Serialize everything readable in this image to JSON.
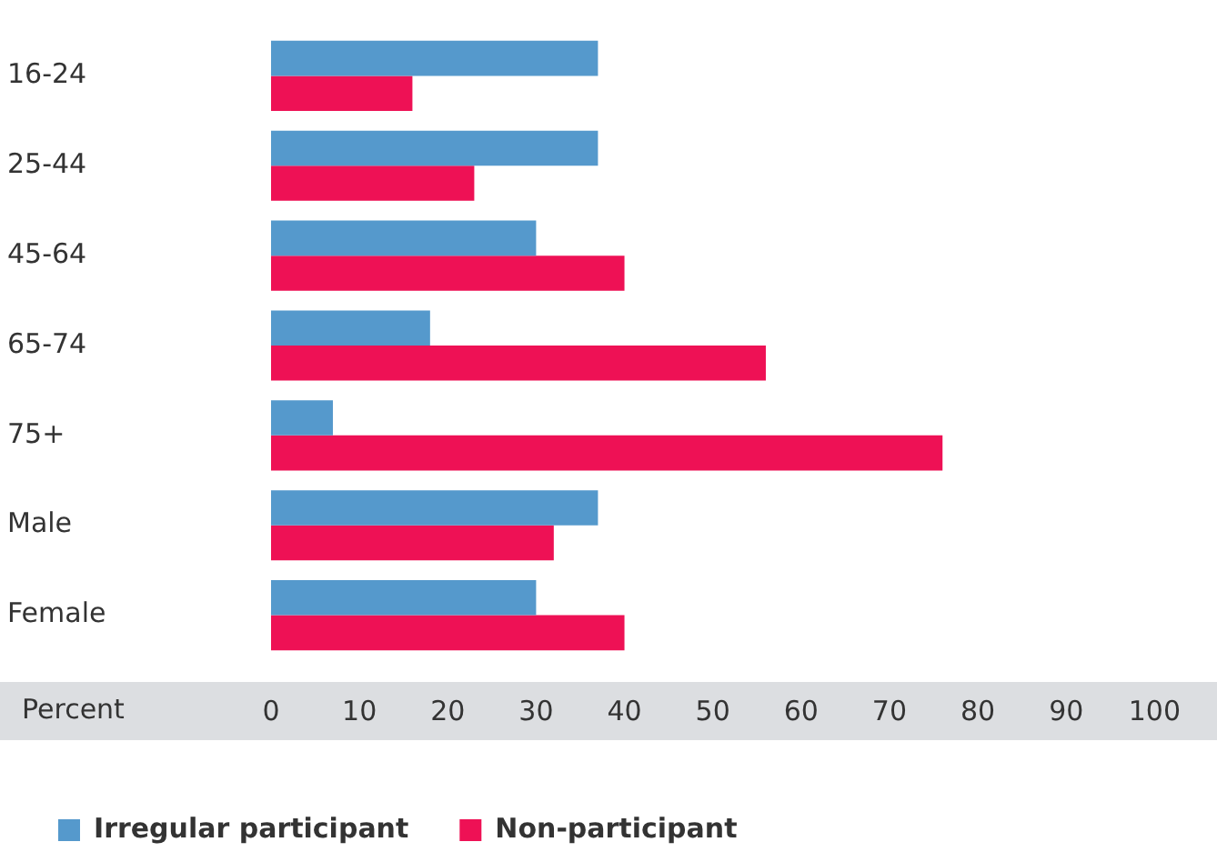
{
  "chart_data": {
    "type": "bar",
    "orientation": "horizontal",
    "xlabel": "Percent",
    "categories": [
      "16-24",
      "25-44",
      "45-64",
      "65-74",
      "75+",
      "Male",
      "Female"
    ],
    "series": [
      {
        "name": "Irregular participant",
        "color": "#5599cc",
        "values": [
          37,
          37,
          30,
          18,
          7,
          37,
          30
        ]
      },
      {
        "name": "Non-participant",
        "color": "#ee1155",
        "values": [
          16,
          23,
          40,
          56,
          76,
          32,
          40
        ]
      }
    ],
    "xlim": [
      0,
      100
    ],
    "xticks": [
      0,
      10,
      20,
      30,
      40,
      50,
      60,
      70,
      80,
      90,
      100
    ],
    "grid": false,
    "legend": "bottom left"
  }
}
